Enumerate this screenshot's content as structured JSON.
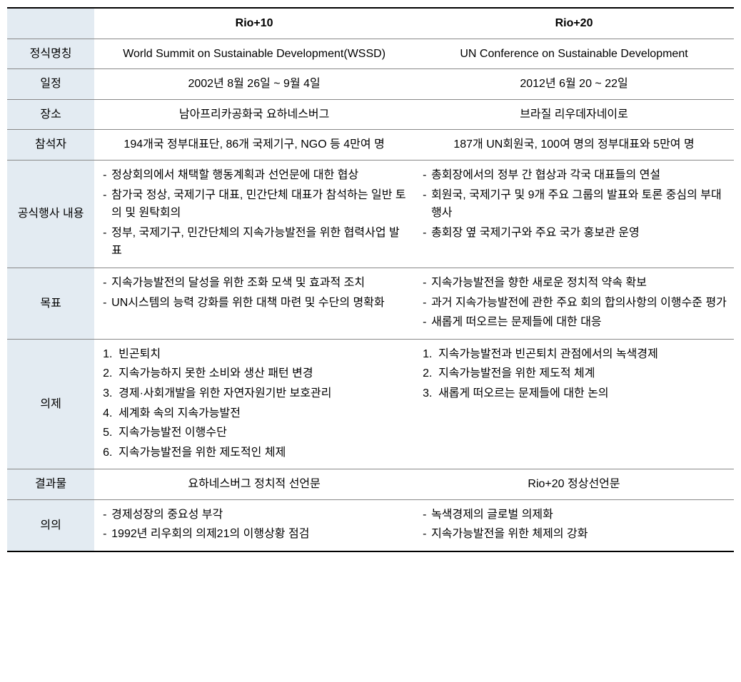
{
  "colors": {
    "background": "#ffffff",
    "label_bg": "#e3ebf2",
    "border_heavy": "#000000",
    "border_light": "#888888",
    "text": "#000000"
  },
  "typography": {
    "font_family": "Malgun Gothic",
    "base_font_size": 16,
    "line_height": 1.6
  },
  "headers": {
    "blank": "",
    "col1": "Rio+10",
    "col2": "Rio+20"
  },
  "rows": {
    "name": {
      "label": "정식명칭",
      "col1": "World Summit on Sustainable Development(WSSD)",
      "col2": "UN Conference on Sustainable Development"
    },
    "schedule": {
      "label": "일정",
      "col1": "2002년 8월 26일 ~ 9월 4일",
      "col2": "2012년 6월 20 ~ 22일"
    },
    "place": {
      "label": "장소",
      "col1": "남아프리카공화국 요하네스버그",
      "col2": "브라질 리우데자네이로"
    },
    "attendees": {
      "label": "참석자",
      "col1": "194개국 정부대표단, 86개 국제기구, NGO 등 4만여 명",
      "col2": "187개 UN회원국, 100여 명의 정부대표와 5만여 명"
    },
    "events": {
      "label": "공식행사 내용",
      "col1_items": [
        "정상회의에서 채택할 행동계획과 선언문에 대한 협상",
        "참가국 정상, 국제기구 대표, 민간단체 대표가 참석하는 일반 토의 및 원탁회의",
        "정부, 국제기구, 민간단체의 지속가능발전을 위한 협력사업 발표"
      ],
      "col2_items": [
        "총회장에서의 정부 간 협상과 각국 대표들의 연설",
        "회원국, 국제기구 및 9개 주요 그룹의 발표와 토론 중심의 부대행사",
        "총회장 옆 국제기구와 주요 국가 홍보관 운영"
      ]
    },
    "goals": {
      "label": "목표",
      "col1_items": [
        "지속가능발전의 달성을 위한 조화 모색 및 효과적 조치",
        "UN시스템의 능력 강화를 위한 대책 마련 및 수단의 명확화"
      ],
      "col2_items": [
        "지속가능발전을 향한 새로운 정치적 약속 확보",
        "과거 지속가능발전에 관한 주요 회의 합의사항의 이행수준 평가",
        "새롭게 떠오르는 문제들에 대한 대응"
      ]
    },
    "agenda": {
      "label": "의제",
      "col1_items": [
        "빈곤퇴치",
        "지속가능하지 못한 소비와 생산 패턴 변경",
        "경제·사회개발을 위한 자연자원기반 보호관리",
        "세계화 속의 지속가능발전",
        "지속가능발전 이행수단",
        "지속가능발전을 위한 제도적인 체제"
      ],
      "col2_items": [
        "지속가능발전과 빈곤퇴치 관점에서의 녹색경제",
        "지속가능발전을 위한 제도적 체계",
        "새롭게 떠오르는 문제들에 대한 논의"
      ]
    },
    "outcome": {
      "label": "결과물",
      "col1": "요하네스버그 정치적 선언문",
      "col2": "Rio+20 정상선언문"
    },
    "significance": {
      "label": "의의",
      "col1_items": [
        "경제성장의 중요성 부각",
        "1992년 리우회의 의제21의 이행상황 점검"
      ],
      "col2_items": [
        "녹색경제의 글로벌 의제화",
        "지속가능발전을 위한 체제의 강화"
      ]
    }
  }
}
